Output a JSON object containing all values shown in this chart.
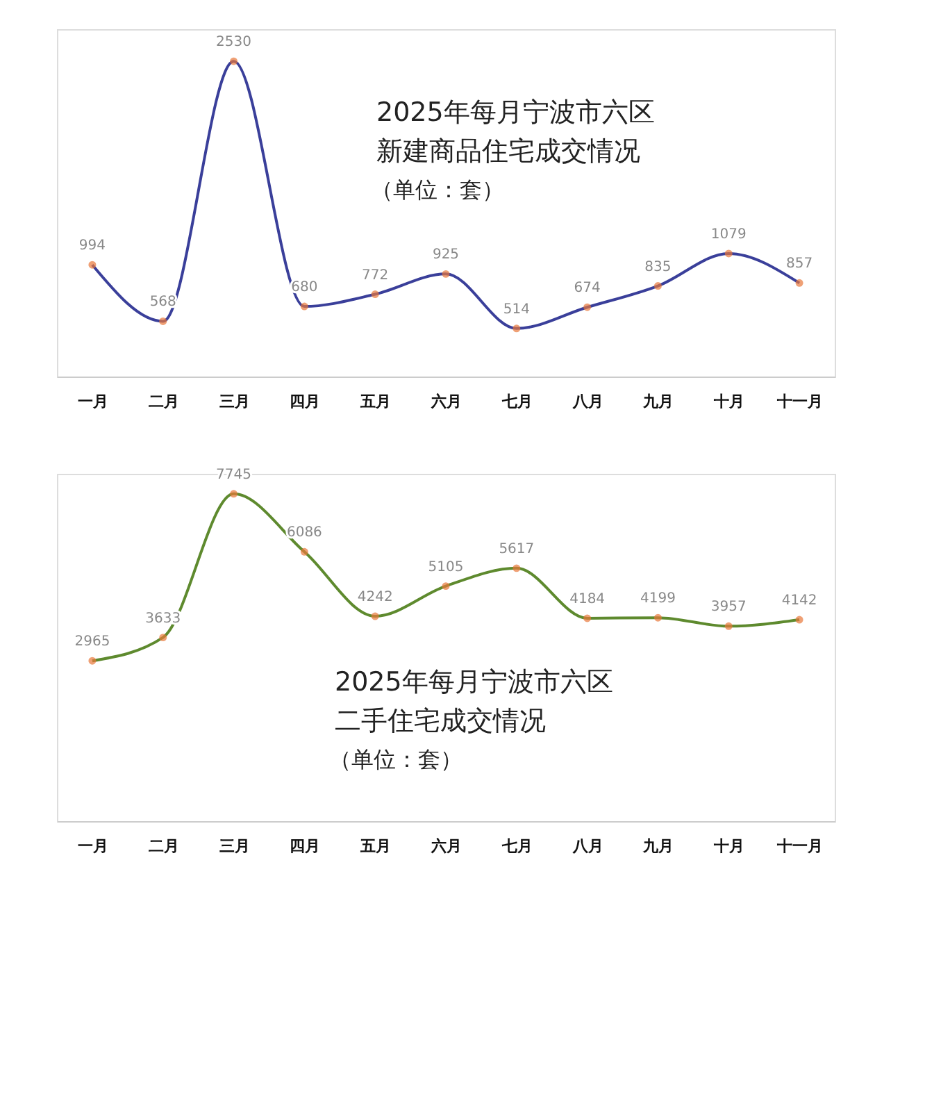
{
  "chart_data": [
    {
      "type": "line",
      "title": "2025年每月宁波市六区",
      "subtitle": "新建商品住宅成交情况",
      "annotations": [
        "（单位：套）"
      ],
      "categories": [
        "一月",
        "二月",
        "三月",
        "四月",
        "五月",
        "六月",
        "七月",
        "八月",
        "九月",
        "十月",
        "十一月"
      ],
      "series": [
        {
          "color": "#3a3f9a",
          "colors": [
            "#e8773a",
            "#e8773a",
            "#e8773a",
            "#e8773a",
            "#e8773a",
            "#e8773a",
            "#e8773a",
            "#e8773a",
            "#e8773a",
            "#e8773a",
            "#e8773a"
          ],
          "values": [
            994,
            568,
            2530,
            680,
            772,
            925,
            514,
            674,
            835,
            1079,
            857
          ]
        }
      ],
      "data_labels": true,
      "marker": "circle",
      "grid": false,
      "tick_labels": "x"
    },
    {
      "type": "line",
      "title": "2025年每月宁波市六区",
      "subtitle": "二手住宅成交情况",
      "annotations": [
        "（单位：套）"
      ],
      "categories": [
        "一月",
        "二月",
        "三月",
        "四月",
        "五月",
        "六月",
        "七月",
        "八月",
        "九月",
        "十月",
        "十一月"
      ],
      "series": [
        {
          "color": "#5e8a2e",
          "colors": [
            "#e8773a",
            "#e8773a",
            "#e8773a",
            "#e8773a",
            "#e8773a",
            "#e8773a",
            "#e8773a",
            "#e8773a",
            "#e8773a",
            "#e8773a",
            "#e8773a"
          ],
          "values": [
            2965,
            3633,
            7745,
            6086,
            4242,
            5105,
            5617,
            4184,
            4199,
            3957,
            4142
          ]
        }
      ],
      "data_labels": true,
      "marker": "circle",
      "grid": false,
      "tick_labels": "x"
    }
  ]
}
